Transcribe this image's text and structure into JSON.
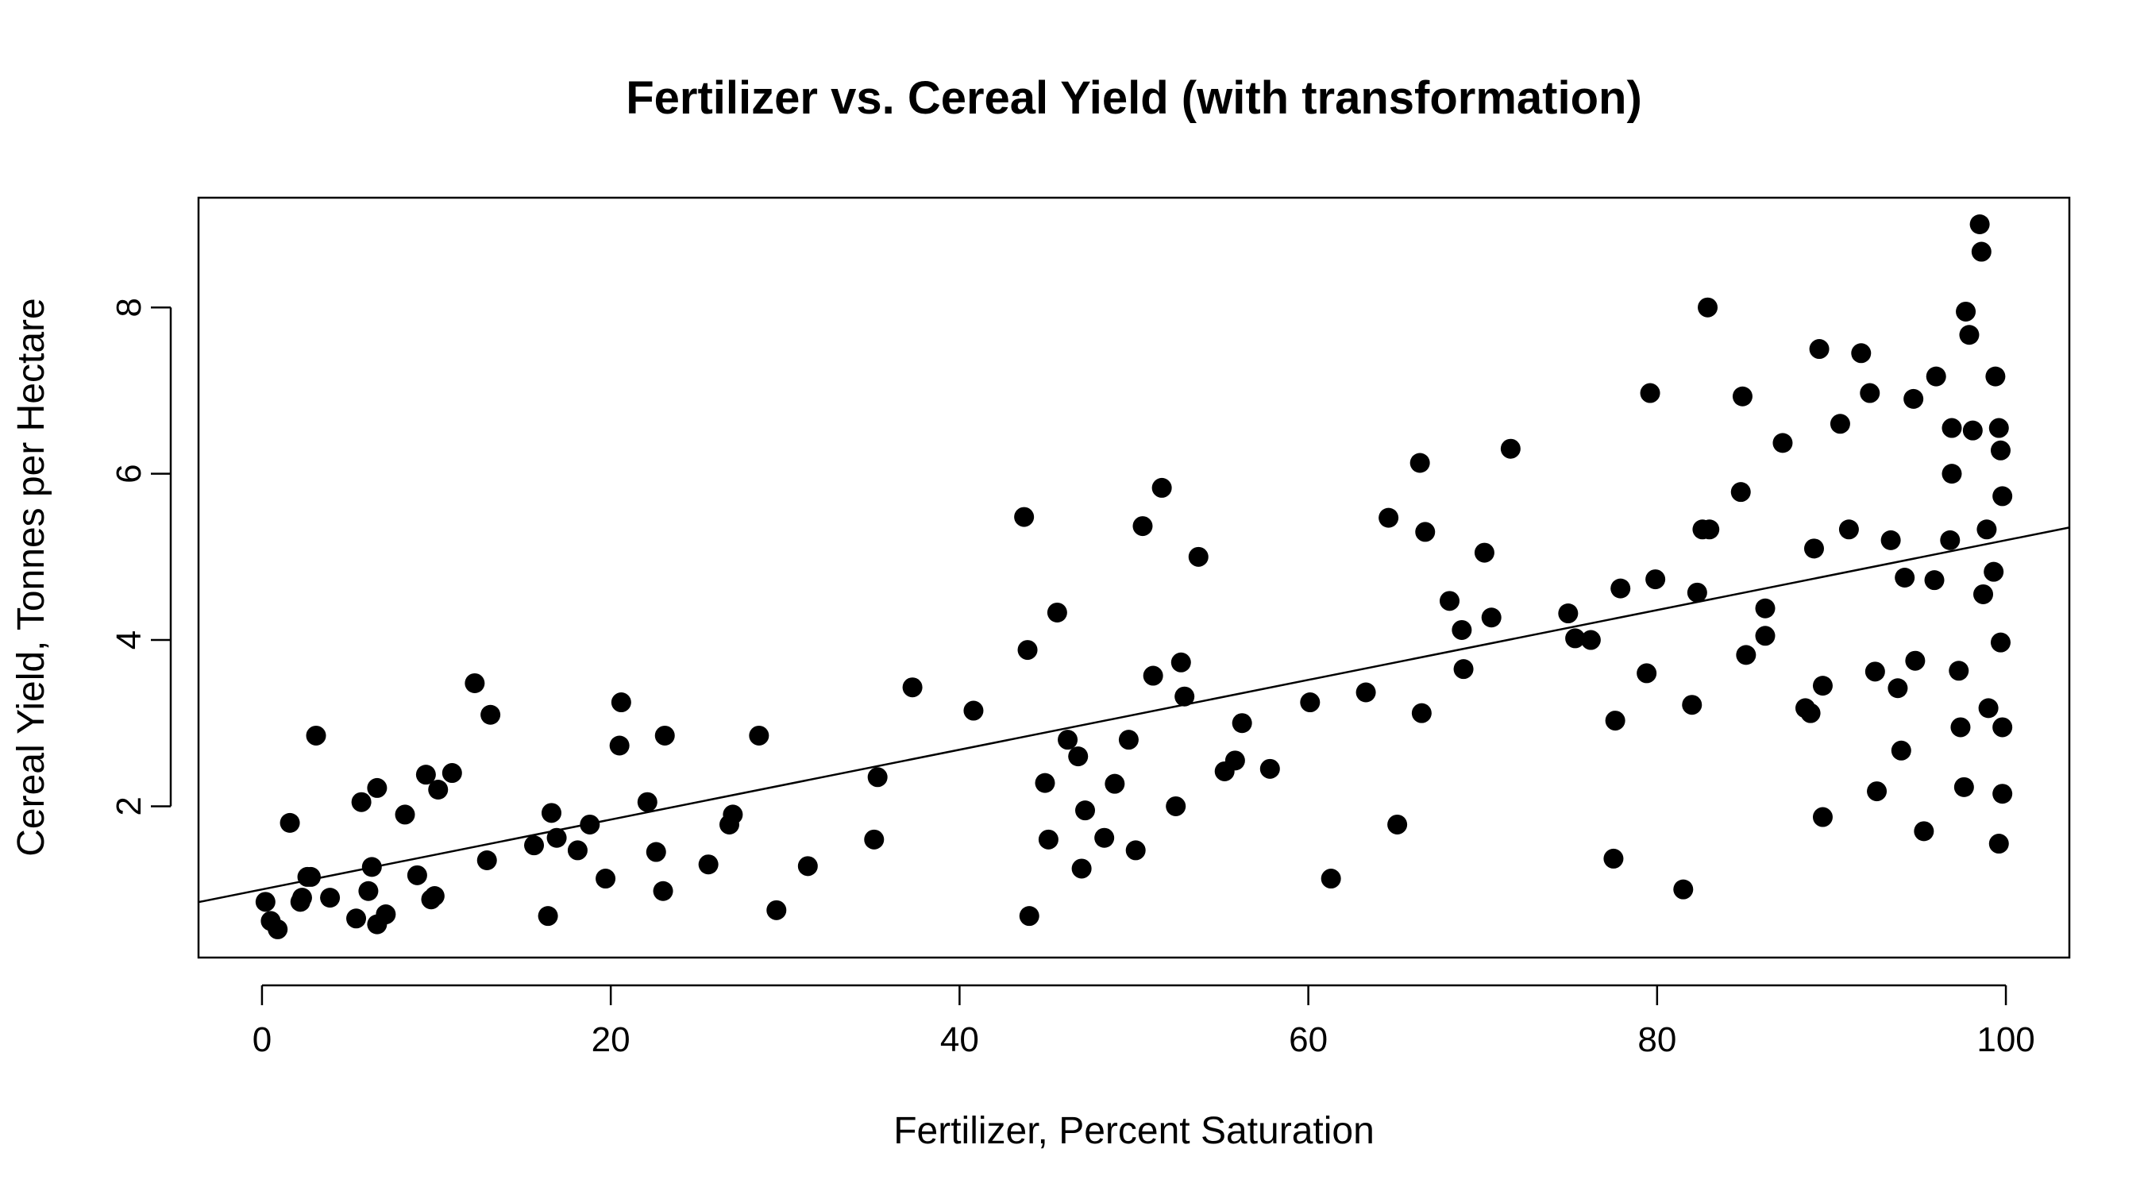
{
  "chart_data": {
    "type": "scatter",
    "title": "Fertilizer vs. Cereal Yield (with transformation)",
    "xlabel": "Fertilizer, Percent Saturation",
    "ylabel": "Cereal Yield, Tonnes per Hectare",
    "xlim": [
      -3.64,
      103.64
    ],
    "ylim": [
      0.18,
      9.32
    ],
    "x_ticks": [
      0,
      20,
      40,
      60,
      80,
      100
    ],
    "y_ticks": [
      2,
      4,
      6,
      8
    ],
    "x_tick_labels": [
      "0",
      "20",
      "40",
      "60",
      "80",
      "100"
    ],
    "y_tick_labels": [
      "2",
      "4",
      "6",
      "8"
    ],
    "grid": false,
    "point_color": "#000000",
    "fit_line": {
      "intercept": 1.0,
      "slope": 0.042
    },
    "points": [
      {
        "x": 0.2,
        "y": 0.85
      },
      {
        "x": 0.5,
        "y": 0.62
      },
      {
        "x": 0.9,
        "y": 0.52
      },
      {
        "x": 1.6,
        "y": 1.8
      },
      {
        "x": 2.2,
        "y": 0.85
      },
      {
        "x": 2.3,
        "y": 0.9
      },
      {
        "x": 2.6,
        "y": 1.15
      },
      {
        "x": 2.8,
        "y": 1.15
      },
      {
        "x": 3.1,
        "y": 2.85
      },
      {
        "x": 3.9,
        "y": 0.9
      },
      {
        "x": 5.4,
        "y": 0.65
      },
      {
        "x": 5.7,
        "y": 2.05
      },
      {
        "x": 6.1,
        "y": 0.98
      },
      {
        "x": 6.3,
        "y": 1.27
      },
      {
        "x": 6.6,
        "y": 0.58
      },
      {
        "x": 6.6,
        "y": 2.22
      },
      {
        "x": 7.1,
        "y": 0.7
      },
      {
        "x": 8.2,
        "y": 1.9
      },
      {
        "x": 8.9,
        "y": 1.17
      },
      {
        "x": 9.4,
        "y": 2.38
      },
      {
        "x": 9.7,
        "y": 0.88
      },
      {
        "x": 9.9,
        "y": 0.92
      },
      {
        "x": 10.1,
        "y": 2.2
      },
      {
        "x": 10.9,
        "y": 2.4
      },
      {
        "x": 12.2,
        "y": 3.48
      },
      {
        "x": 12.9,
        "y": 1.35
      },
      {
        "x": 13.1,
        "y": 3.1
      },
      {
        "x": 15.6,
        "y": 1.53
      },
      {
        "x": 16.4,
        "y": 0.68
      },
      {
        "x": 16.6,
        "y": 1.92
      },
      {
        "x": 16.9,
        "y": 1.62
      },
      {
        "x": 18.1,
        "y": 1.47
      },
      {
        "x": 18.8,
        "y": 1.78
      },
      {
        "x": 19.7,
        "y": 1.13
      },
      {
        "x": 20.5,
        "y": 2.73
      },
      {
        "x": 20.6,
        "y": 3.25
      },
      {
        "x": 22.1,
        "y": 2.05
      },
      {
        "x": 22.6,
        "y": 1.45
      },
      {
        "x": 23.0,
        "y": 0.98
      },
      {
        "x": 23.1,
        "y": 2.85
      },
      {
        "x": 25.6,
        "y": 1.3
      },
      {
        "x": 26.8,
        "y": 1.78
      },
      {
        "x": 27.0,
        "y": 1.9
      },
      {
        "x": 28.5,
        "y": 2.85
      },
      {
        "x": 29.5,
        "y": 0.75
      },
      {
        "x": 31.3,
        "y": 1.28
      },
      {
        "x": 35.1,
        "y": 1.6
      },
      {
        "x": 35.3,
        "y": 2.35
      },
      {
        "x": 37.3,
        "y": 3.43
      },
      {
        "x": 40.8,
        "y": 3.15
      },
      {
        "x": 43.7,
        "y": 5.48
      },
      {
        "x": 43.9,
        "y": 3.88
      },
      {
        "x": 44.0,
        "y": 0.68
      },
      {
        "x": 44.9,
        "y": 2.28
      },
      {
        "x": 45.1,
        "y": 1.6
      },
      {
        "x": 45.6,
        "y": 4.33
      },
      {
        "x": 46.2,
        "y": 2.8
      },
      {
        "x": 46.8,
        "y": 2.6
      },
      {
        "x": 47.0,
        "y": 1.25
      },
      {
        "x": 47.2,
        "y": 1.95
      },
      {
        "x": 48.3,
        "y": 1.62
      },
      {
        "x": 48.9,
        "y": 2.27
      },
      {
        "x": 49.7,
        "y": 2.8
      },
      {
        "x": 50.1,
        "y": 1.47
      },
      {
        "x": 50.5,
        "y": 5.37
      },
      {
        "x": 51.1,
        "y": 3.57
      },
      {
        "x": 51.6,
        "y": 5.83
      },
      {
        "x": 52.4,
        "y": 2.0
      },
      {
        "x": 52.7,
        "y": 3.73
      },
      {
        "x": 52.9,
        "y": 3.32
      },
      {
        "x": 53.7,
        "y": 5.0
      },
      {
        "x": 55.2,
        "y": 2.42
      },
      {
        "x": 55.8,
        "y": 2.55
      },
      {
        "x": 56.2,
        "y": 3.0
      },
      {
        "x": 57.8,
        "y": 2.45
      },
      {
        "x": 60.1,
        "y": 3.25
      },
      {
        "x": 61.3,
        "y": 1.13
      },
      {
        "x": 63.3,
        "y": 3.37
      },
      {
        "x": 64.6,
        "y": 5.47
      },
      {
        "x": 65.1,
        "y": 1.78
      },
      {
        "x": 66.4,
        "y": 6.13
      },
      {
        "x": 66.5,
        "y": 3.12
      },
      {
        "x": 66.7,
        "y": 5.3
      },
      {
        "x": 68.1,
        "y": 4.47
      },
      {
        "x": 68.8,
        "y": 4.12
      },
      {
        "x": 68.9,
        "y": 3.65
      },
      {
        "x": 70.1,
        "y": 5.05
      },
      {
        "x": 70.5,
        "y": 4.27
      },
      {
        "x": 71.6,
        "y": 6.3
      },
      {
        "x": 74.9,
        "y": 4.32
      },
      {
        "x": 75.3,
        "y": 4.02
      },
      {
        "x": 76.2,
        "y": 4.0
      },
      {
        "x": 77.5,
        "y": 1.37
      },
      {
        "x": 77.6,
        "y": 3.03
      },
      {
        "x": 77.9,
        "y": 4.62
      },
      {
        "x": 79.4,
        "y": 3.6
      },
      {
        "x": 79.6,
        "y": 6.97
      },
      {
        "x": 79.9,
        "y": 4.73
      },
      {
        "x": 81.5,
        "y": 1.0
      },
      {
        "x": 82.0,
        "y": 3.22
      },
      {
        "x": 82.3,
        "y": 4.57
      },
      {
        "x": 82.6,
        "y": 5.33
      },
      {
        "x": 82.9,
        "y": 8.0
      },
      {
        "x": 83.0,
        "y": 5.33
      },
      {
        "x": 84.8,
        "y": 5.78
      },
      {
        "x": 84.9,
        "y": 6.93
      },
      {
        "x": 85.1,
        "y": 3.82
      },
      {
        "x": 86.2,
        "y": 4.05
      },
      {
        "x": 86.2,
        "y": 4.38
      },
      {
        "x": 87.2,
        "y": 6.37
      },
      {
        "x": 88.5,
        "y": 3.18
      },
      {
        "x": 88.8,
        "y": 3.12
      },
      {
        "x": 89.0,
        "y": 5.1
      },
      {
        "x": 89.3,
        "y": 7.5
      },
      {
        "x": 89.5,
        "y": 1.87
      },
      {
        "x": 89.5,
        "y": 3.45
      },
      {
        "x": 90.5,
        "y": 6.6
      },
      {
        "x": 91.0,
        "y": 5.33
      },
      {
        "x": 91.7,
        "y": 7.45
      },
      {
        "x": 92.2,
        "y": 6.97
      },
      {
        "x": 92.5,
        "y": 3.62
      },
      {
        "x": 92.6,
        "y": 2.18
      },
      {
        "x": 93.4,
        "y": 5.2
      },
      {
        "x": 93.8,
        "y": 3.42
      },
      {
        "x": 94.0,
        "y": 2.67
      },
      {
        "x": 94.2,
        "y": 4.75
      },
      {
        "x": 94.7,
        "y": 6.9
      },
      {
        "x": 94.8,
        "y": 3.75
      },
      {
        "x": 95.3,
        "y": 1.7
      },
      {
        "x": 95.9,
        "y": 4.72
      },
      {
        "x": 96.0,
        "y": 7.17
      },
      {
        "x": 96.8,
        "y": 5.2
      },
      {
        "x": 96.9,
        "y": 6.55
      },
      {
        "x": 96.9,
        "y": 6.0
      },
      {
        "x": 97.3,
        "y": 3.63
      },
      {
        "x": 97.4,
        "y": 2.95
      },
      {
        "x": 97.6,
        "y": 2.23
      },
      {
        "x": 97.7,
        "y": 7.95
      },
      {
        "x": 97.9,
        "y": 7.67
      },
      {
        "x": 98.1,
        "y": 6.52
      },
      {
        "x": 98.5,
        "y": 9.0
      },
      {
        "x": 98.6,
        "y": 8.67
      },
      {
        "x": 98.7,
        "y": 4.55
      },
      {
        "x": 98.9,
        "y": 5.33
      },
      {
        "x": 99.0,
        "y": 3.18
      },
      {
        "x": 99.3,
        "y": 4.82
      },
      {
        "x": 99.4,
        "y": 7.17
      },
      {
        "x": 99.6,
        "y": 6.55
      },
      {
        "x": 99.6,
        "y": 1.55
      },
      {
        "x": 99.7,
        "y": 3.97
      },
      {
        "x": 99.7,
        "y": 6.28
      },
      {
        "x": 99.8,
        "y": 5.73
      },
      {
        "x": 99.8,
        "y": 2.95
      },
      {
        "x": 99.8,
        "y": 2.15
      }
    ]
  }
}
